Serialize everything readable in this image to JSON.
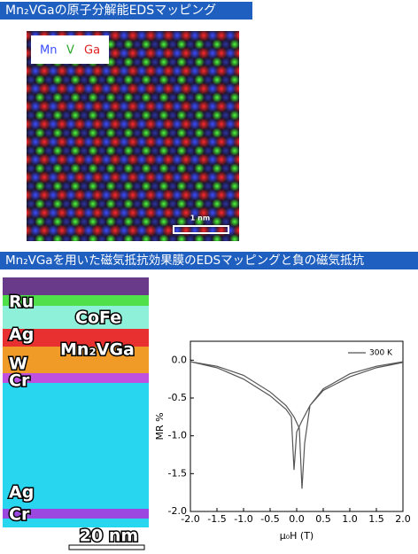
{
  "header1": "Mn₂VGaの原子分解能EDSマッピング",
  "image1": {
    "legend": [
      "Mn",
      "V",
      "Ga"
    ],
    "scale_bar": "1 nm"
  },
  "header2": "Mn₂VGaを用いた磁気抵抗効果膜のEDSマッピングと負の磁気抵抗",
  "image2": {
    "labels": [
      "Ru",
      "CoFe",
      "Ag",
      "Mn₂VGa",
      "W",
      "Cr",
      "Ag",
      "Cr"
    ],
    "scale_bar": "20 nm"
  },
  "chart_data": {
    "type": "line",
    "x_label": "μ₀H (T)",
    "y_label": "MR %",
    "xlim": [
      -2,
      2
    ],
    "ylim": [
      -2,
      0.25
    ],
    "xticks": [
      {
        "value": -2,
        "label": "-2.0"
      },
      -1.5,
      {
        "value": -1,
        "label": "-1.0"
      },
      -0.5,
      {
        "value": 0,
        "label": "0.0"
      },
      0.5,
      {
        "value": 1,
        "label": "1.0"
      },
      1.5,
      {
        "value": 2,
        "label": "2.0"
      }
    ],
    "yticks": [
      {
        "value": 0,
        "label": "0.0"
      },
      -0.5,
      {
        "value": -1,
        "label": "-1.0"
      },
      -1.5,
      {
        "value": -2,
        "label": "-2.0"
      }
    ],
    "legend_position": "upper right",
    "series": [
      {
        "name": "300 K",
        "color": "#555555",
        "x": [
          2,
          1.5,
          1,
          0.5,
          0.25,
          0.1,
          0,
          -0.05,
          -0.1,
          -0.2,
          -0.5,
          -1,
          -1.5,
          -2,
          -1.5,
          -1,
          -0.5,
          -0.2,
          -0.05,
          0.05,
          0.1,
          0.15,
          0.25,
          0.5,
          1,
          1.5,
          2
        ],
        "values": [
          -0.03,
          -0.1,
          -0.22,
          -0.4,
          -0.6,
          -0.8,
          -0.95,
          -1.45,
          -0.75,
          -0.65,
          -0.47,
          -0.25,
          -0.1,
          -0.02,
          -0.08,
          -0.2,
          -0.42,
          -0.6,
          -0.75,
          -0.9,
          -1.7,
          -1.1,
          -0.6,
          -0.38,
          -0.18,
          -0.08,
          -0.02
        ]
      }
    ]
  }
}
